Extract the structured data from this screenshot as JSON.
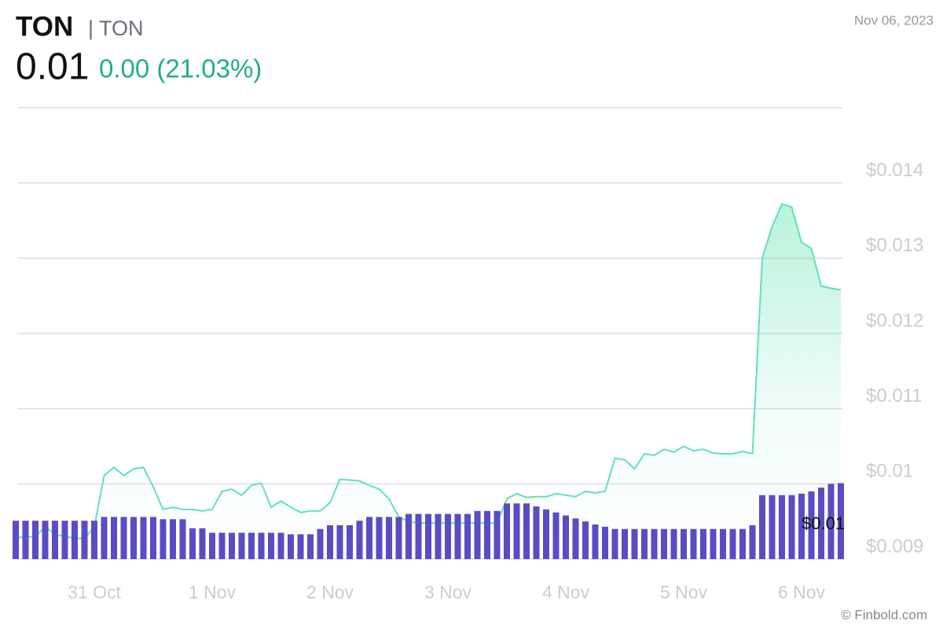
{
  "chart_data": {
    "type": "line",
    "title": "TON",
    "subtitle": "| TON",
    "price": "0.01",
    "change": "0.00 (21.03%)",
    "date": "Nov 06, 2023",
    "source": "© Finbold.com",
    "annotation": "$0.01",
    "categories": [
      null,
      null,
      null,
      null,
      null,
      null,
      null,
      null,
      "31 Oct",
      null,
      null,
      null,
      null,
      null,
      null,
      null,
      null,
      null,
      null,
      null,
      "1 Nov",
      null,
      null,
      null,
      null,
      null,
      null,
      null,
      null,
      null,
      null,
      null,
      "2 Nov",
      null,
      null,
      null,
      null,
      null,
      null,
      null,
      null,
      null,
      null,
      null,
      "3 Nov",
      null,
      null,
      null,
      null,
      null,
      null,
      null,
      null,
      null,
      null,
      null,
      "4 Nov",
      null,
      null,
      null,
      null,
      null,
      null,
      null,
      null,
      null,
      null,
      null,
      "5 Nov",
      null,
      null,
      null,
      null,
      null,
      null,
      null,
      null,
      null,
      null,
      null,
      "6 Nov",
      null,
      null,
      null,
      null
    ],
    "series": [
      {
        "name": "TON",
        "type": "line",
        "color": "#62e3b0",
        "values": [
          0.00929,
          0.00929,
          0.0093,
          0.00943,
          0.00933,
          0.0093,
          0.00928,
          0.00927,
          0.00943,
          0.01011,
          0.01022,
          0.01011,
          0.0102,
          0.01022,
          0.00996,
          0.00966,
          0.00969,
          0.00966,
          0.00966,
          0.00964,
          0.00966,
          0.0099,
          0.00993,
          0.00985,
          0.00998,
          0.01001,
          0.00969,
          0.00977,
          0.00969,
          0.00962,
          0.00964,
          0.00964,
          0.00975,
          0.01006,
          0.01005,
          0.01004,
          0.00998,
          0.00993,
          0.0098,
          0.00956,
          0.0095,
          0.00948,
          0.00948,
          0.00948,
          0.00948,
          0.00948,
          0.00948,
          0.00948,
          0.00948,
          0.00948,
          0.0098,
          0.00987,
          0.00982,
          0.00983,
          0.00983,
          0.00987,
          0.00985,
          0.00983,
          0.0099,
          0.00988,
          0.0099,
          0.01034,
          0.01032,
          0.0102,
          0.0104,
          0.01038,
          0.01046,
          0.01042,
          0.0105,
          0.01044,
          0.01046,
          0.01041,
          0.0104,
          0.0104,
          0.01043,
          0.0104,
          0.013,
          0.01342,
          0.01372,
          0.01368,
          0.01321,
          0.01313,
          0.01263,
          0.0126,
          0.01258
        ]
      },
      {
        "name": "Volume",
        "type": "bar",
        "color": "#5a4cc4",
        "values": [
          0.00951,
          0.00951,
          0.00951,
          0.00951,
          0.00951,
          0.00951,
          0.00951,
          0.00951,
          0.00951,
          0.00956,
          0.00956,
          0.00956,
          0.00956,
          0.00956,
          0.00956,
          0.00953,
          0.00953,
          0.00953,
          0.00941,
          0.00941,
          0.00935,
          0.00935,
          0.00935,
          0.00935,
          0.00935,
          0.00935,
          0.00935,
          0.00935,
          0.00933,
          0.00933,
          0.00933,
          0.0094,
          0.00945,
          0.00945,
          0.00945,
          0.00951,
          0.00956,
          0.00956,
          0.00956,
          0.00956,
          0.0096,
          0.0096,
          0.0096,
          0.0096,
          0.0096,
          0.0096,
          0.0096,
          0.00964,
          0.00964,
          0.00964,
          0.00974,
          0.00974,
          0.00974,
          0.0097,
          0.00966,
          0.00962,
          0.00958,
          0.00954,
          0.0095,
          0.00946,
          0.00943,
          0.0094,
          0.0094,
          0.0094,
          0.0094,
          0.0094,
          0.0094,
          0.0094,
          0.0094,
          0.0094,
          0.0094,
          0.0094,
          0.0094,
          0.0094,
          0.0094,
          0.00945,
          0.00985,
          0.00985,
          0.00985,
          0.00985,
          0.00987,
          0.0099,
          0.00995,
          0.01,
          0.01001
        ]
      }
    ],
    "ylim": [
      0.009,
      0.015
    ],
    "yticks": [
      {
        "value": 0.009,
        "label": "$0.009"
      },
      {
        "value": 0.01,
        "label": "$0.01"
      },
      {
        "value": 0.011,
        "label": "$0.011"
      },
      {
        "value": 0.012,
        "label": "$0.012"
      },
      {
        "value": 0.013,
        "label": "$0.013"
      },
      {
        "value": 0.014,
        "label": "$0.014"
      }
    ],
    "grid": true
  }
}
